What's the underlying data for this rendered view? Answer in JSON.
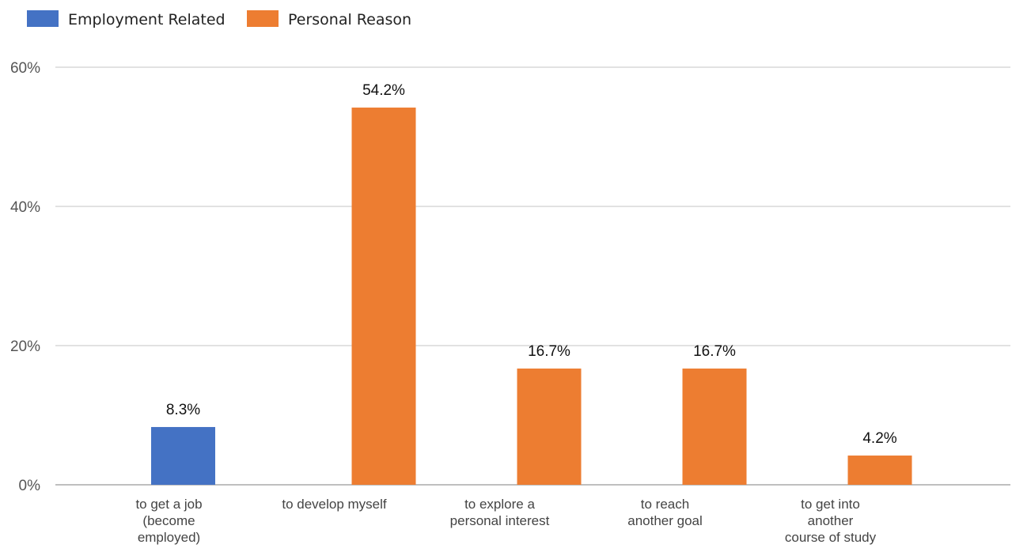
{
  "chart_data": {
    "type": "bar",
    "title": "",
    "xlabel": "",
    "ylabel": "",
    "ylim": [
      0,
      60
    ],
    "yticks": [
      0,
      20,
      40,
      60
    ],
    "ytick_labels": [
      "0%",
      "20%",
      "40%",
      "60%"
    ],
    "grid": true,
    "legend_position": "top-left",
    "legend": [
      {
        "name": "Employment Related",
        "color": "#4472C4"
      },
      {
        "name": "Personal Reason",
        "color": "#ED7D31"
      }
    ],
    "categories": [
      [
        "to get a job",
        "(become",
        "employed)"
      ],
      [
        "to develop myself"
      ],
      [
        "to explore a",
        "personal interest"
      ],
      [
        "to reach",
        "another goal"
      ],
      [
        "to get into",
        "another",
        "course of study"
      ]
    ],
    "series_index": [
      0,
      1,
      1,
      1,
      1
    ],
    "values": [
      8.3,
      54.2,
      16.7,
      16.7,
      4.2
    ],
    "data_labels": [
      "8.3%",
      "54.2%",
      "16.7%",
      "16.7%",
      "4.2%"
    ]
  }
}
